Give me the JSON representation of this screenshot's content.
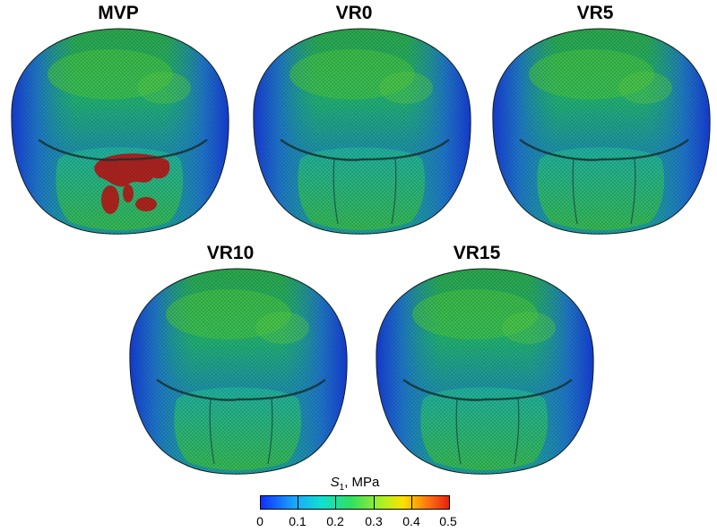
{
  "panels": [
    {
      "label": "MVP",
      "variant": "prolapse"
    },
    {
      "label": "VR0",
      "variant": "repaired"
    },
    {
      "label": "VR5",
      "variant": "repaired"
    },
    {
      "label": "VR10",
      "variant": "repaired"
    },
    {
      "label": "VR15",
      "variant": "repaired"
    }
  ],
  "legend": {
    "symbol": "S",
    "subscript": "1",
    "unit": ", MPa",
    "ticks": [
      "0",
      "0.1",
      "0.2",
      "0.3",
      "0.4",
      "0.5"
    ],
    "colors": [
      "#1030ff",
      "#18a8ff",
      "#10e0d0",
      "#30e060",
      "#b8f020",
      "#ffe000",
      "#ff7a10",
      "#e82010"
    ]
  }
}
